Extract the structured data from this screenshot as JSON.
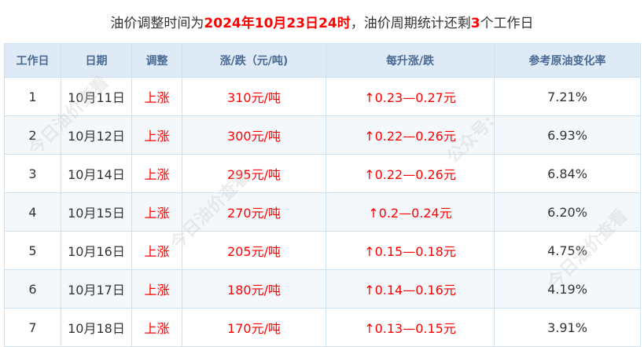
{
  "title": {
    "prefix": "油价调整时间为",
    "highlight": "2024年10月23日24时",
    "middle": "，油价周期统计还剩",
    "count": "3",
    "suffix": "个工作日"
  },
  "headers": [
    "工作日",
    "日期",
    "调整",
    "涨/跌（元/吨)",
    "每升涨/跌",
    "参考原油变化率"
  ],
  "rows": [
    {
      "day": "1",
      "date": "10月11日",
      "adj": "上涨",
      "ton": "310元/吨",
      "liter": "↑0.23—0.27元",
      "rate": "7.21%"
    },
    {
      "day": "2",
      "date": "10月12日",
      "adj": "上涨",
      "ton": "300元/吨",
      "liter": "↑0.22—0.26元",
      "rate": "6.93%"
    },
    {
      "day": "3",
      "date": "10月14日",
      "adj": "上涨",
      "ton": "295元/吨",
      "liter": "↑0.22—0.26元",
      "rate": "6.84%"
    },
    {
      "day": "4",
      "date": "10月15日",
      "adj": "上涨",
      "ton": "270元/吨",
      "liter": "↑0.2—0.24元",
      "rate": "6.20%"
    },
    {
      "day": "5",
      "date": "10月16日",
      "adj": "上涨",
      "ton": "205元/吨",
      "liter": "↑0.15—0.18元",
      "rate": "4.75%"
    },
    {
      "day": "6",
      "date": "10月17日",
      "adj": "上涨",
      "ton": "180元/吨",
      "liter": "↑0.14—0.16元",
      "rate": "4.19%"
    },
    {
      "day": "7",
      "date": "10月18日",
      "adj": "上涨",
      "ton": "170元/吨",
      "liter": "↑0.13—0.15元",
      "rate": "3.91%"
    }
  ],
  "watermark": [
    "今日油价查看",
    "公众号:"
  ],
  "colors": {
    "accent": "#ff0000",
    "header_bg": "#deebf7"
  }
}
